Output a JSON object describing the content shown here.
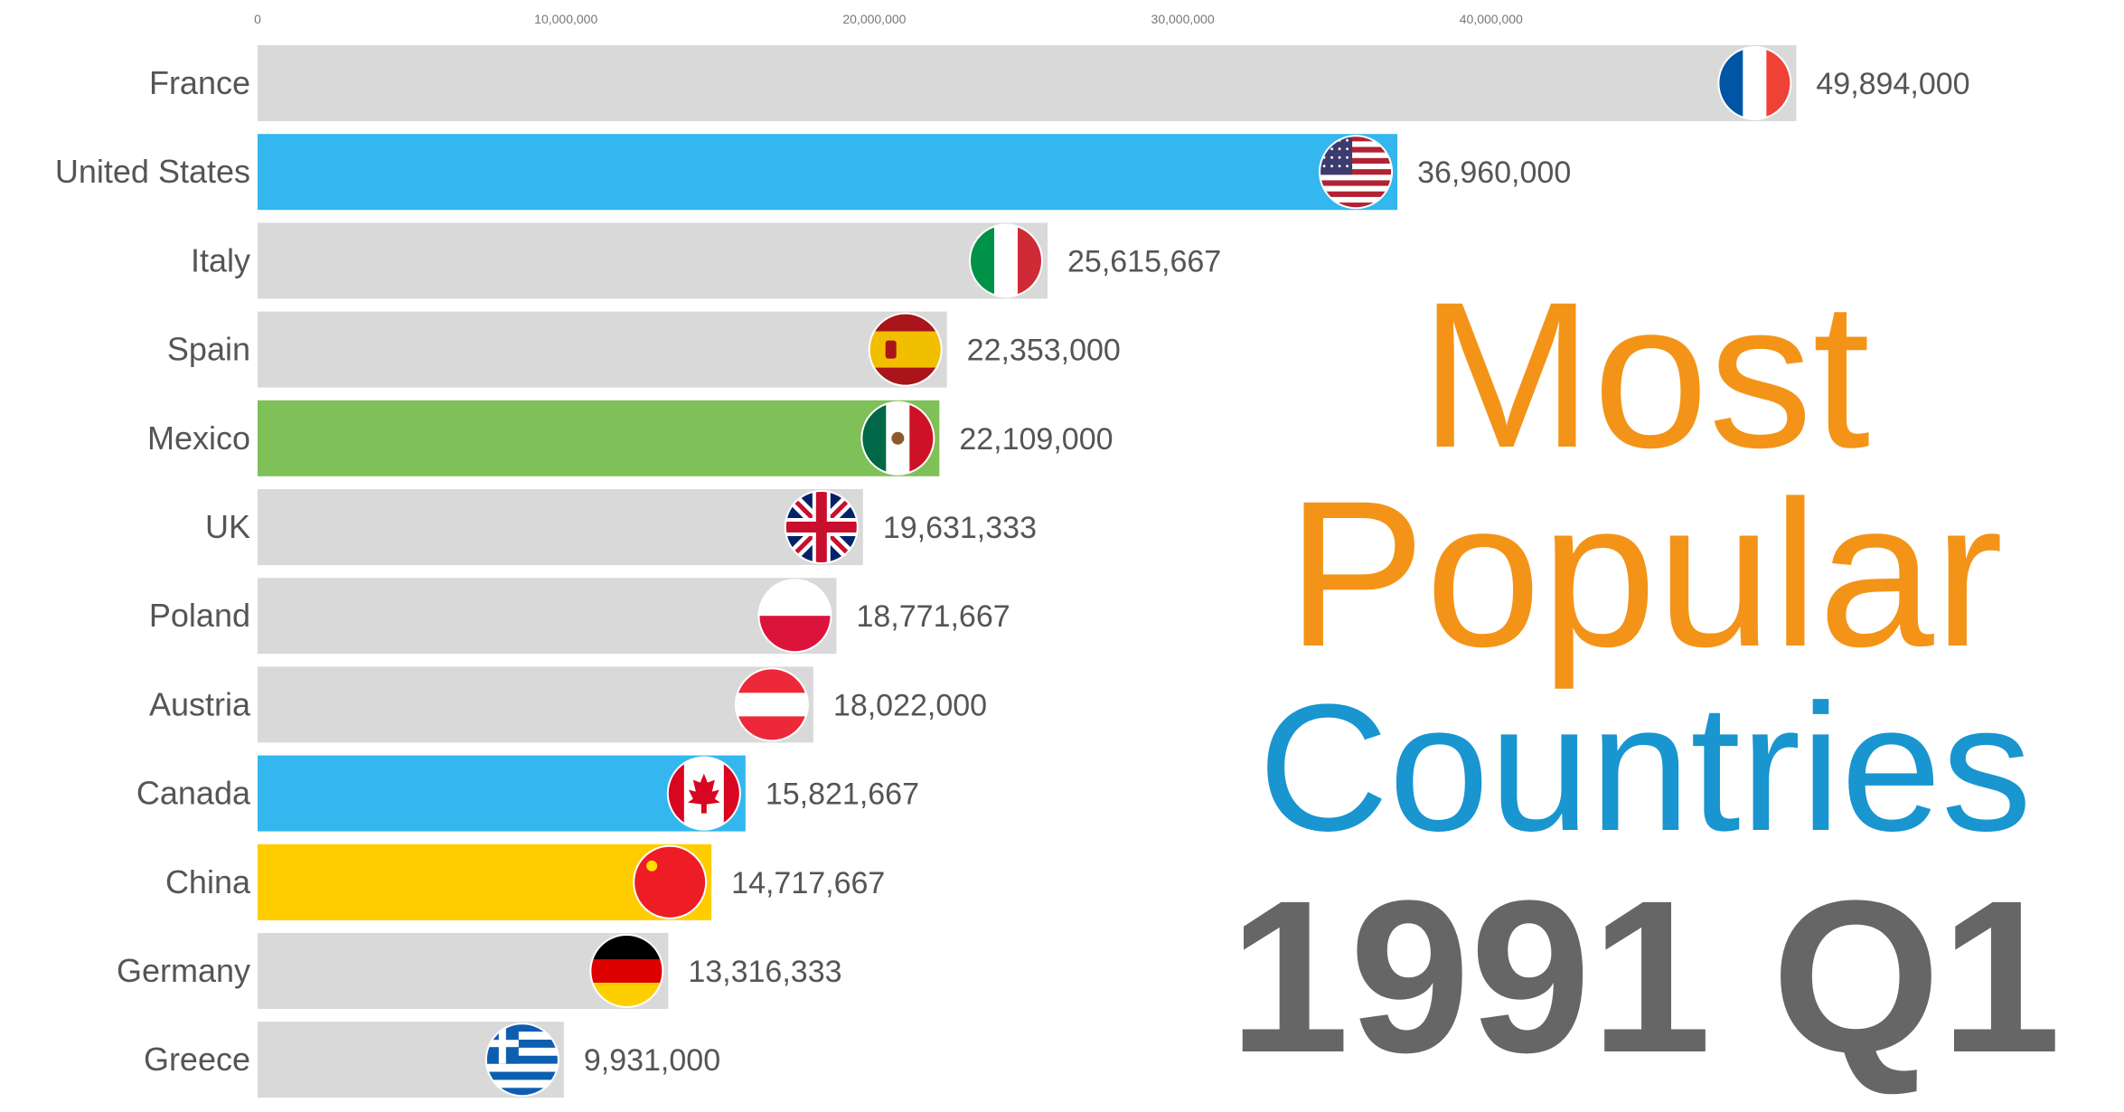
{
  "title": {
    "line1": "Most",
    "line2": "Popular",
    "line3": "Countries",
    "period": "1991 Q1"
  },
  "colors": {
    "title_orange": "#F39418",
    "title_blue": "#1995D0",
    "period_gray": "#666666",
    "bar_default": "#D9D9D9"
  },
  "chart_data": {
    "type": "bar",
    "orientation": "horizontal",
    "title": "Most Popular Countries",
    "period": "1991 Q1",
    "xlabel": "",
    "ylabel": "",
    "xlim": [
      0,
      50000000
    ],
    "x_ticks": [
      {
        "value": 0,
        "label": "0"
      },
      {
        "value": 10000000,
        "label": "10,000,000"
      },
      {
        "value": 20000000,
        "label": "20,000,000"
      },
      {
        "value": 30000000,
        "label": "30,000,000"
      },
      {
        "value": 40000000,
        "label": "40,000,000"
      }
    ],
    "bars": [
      {
        "category": "France",
        "value": 49894000,
        "value_label": "49,894,000",
        "color": "#D9D9D9",
        "flag": "france-flag"
      },
      {
        "category": "United States",
        "value": 36960000,
        "value_label": "36,960,000",
        "color": "#33B7EE",
        "flag": "usa-flag"
      },
      {
        "category": "Italy",
        "value": 25615667,
        "value_label": "25,615,667",
        "color": "#D9D9D9",
        "flag": "italy-flag"
      },
      {
        "category": "Spain",
        "value": 22353000,
        "value_label": "22,353,000",
        "color": "#D9D9D9",
        "flag": "spain-flag"
      },
      {
        "category": "Mexico",
        "value": 22109000,
        "value_label": "22,109,000",
        "color": "#7FC058",
        "flag": "mexico-flag"
      },
      {
        "category": "UK",
        "value": 19631333,
        "value_label": "19,631,333",
        "color": "#D9D9D9",
        "flag": "uk-flag"
      },
      {
        "category": "Poland",
        "value": 18771667,
        "value_label": "18,771,667",
        "color": "#D9D9D9",
        "flag": "poland-flag"
      },
      {
        "category": "Austria",
        "value": 18022000,
        "value_label": "18,022,000",
        "color": "#D9D9D9",
        "flag": "austria-flag"
      },
      {
        "category": "Canada",
        "value": 15821667,
        "value_label": "15,821,667",
        "color": "#33B7EE",
        "flag": "canada-flag"
      },
      {
        "category": "China",
        "value": 14717667,
        "value_label": "14,717,667",
        "color": "#FFCC00",
        "flag": "china-flag"
      },
      {
        "category": "Germany",
        "value": 13316333,
        "value_label": "13,316,333",
        "color": "#D9D9D9",
        "flag": "germany-flag"
      },
      {
        "category": "Greece",
        "value": 9931000,
        "value_label": "9,931,000",
        "color": "#D9D9D9",
        "flag": "greece-flag"
      }
    ]
  }
}
